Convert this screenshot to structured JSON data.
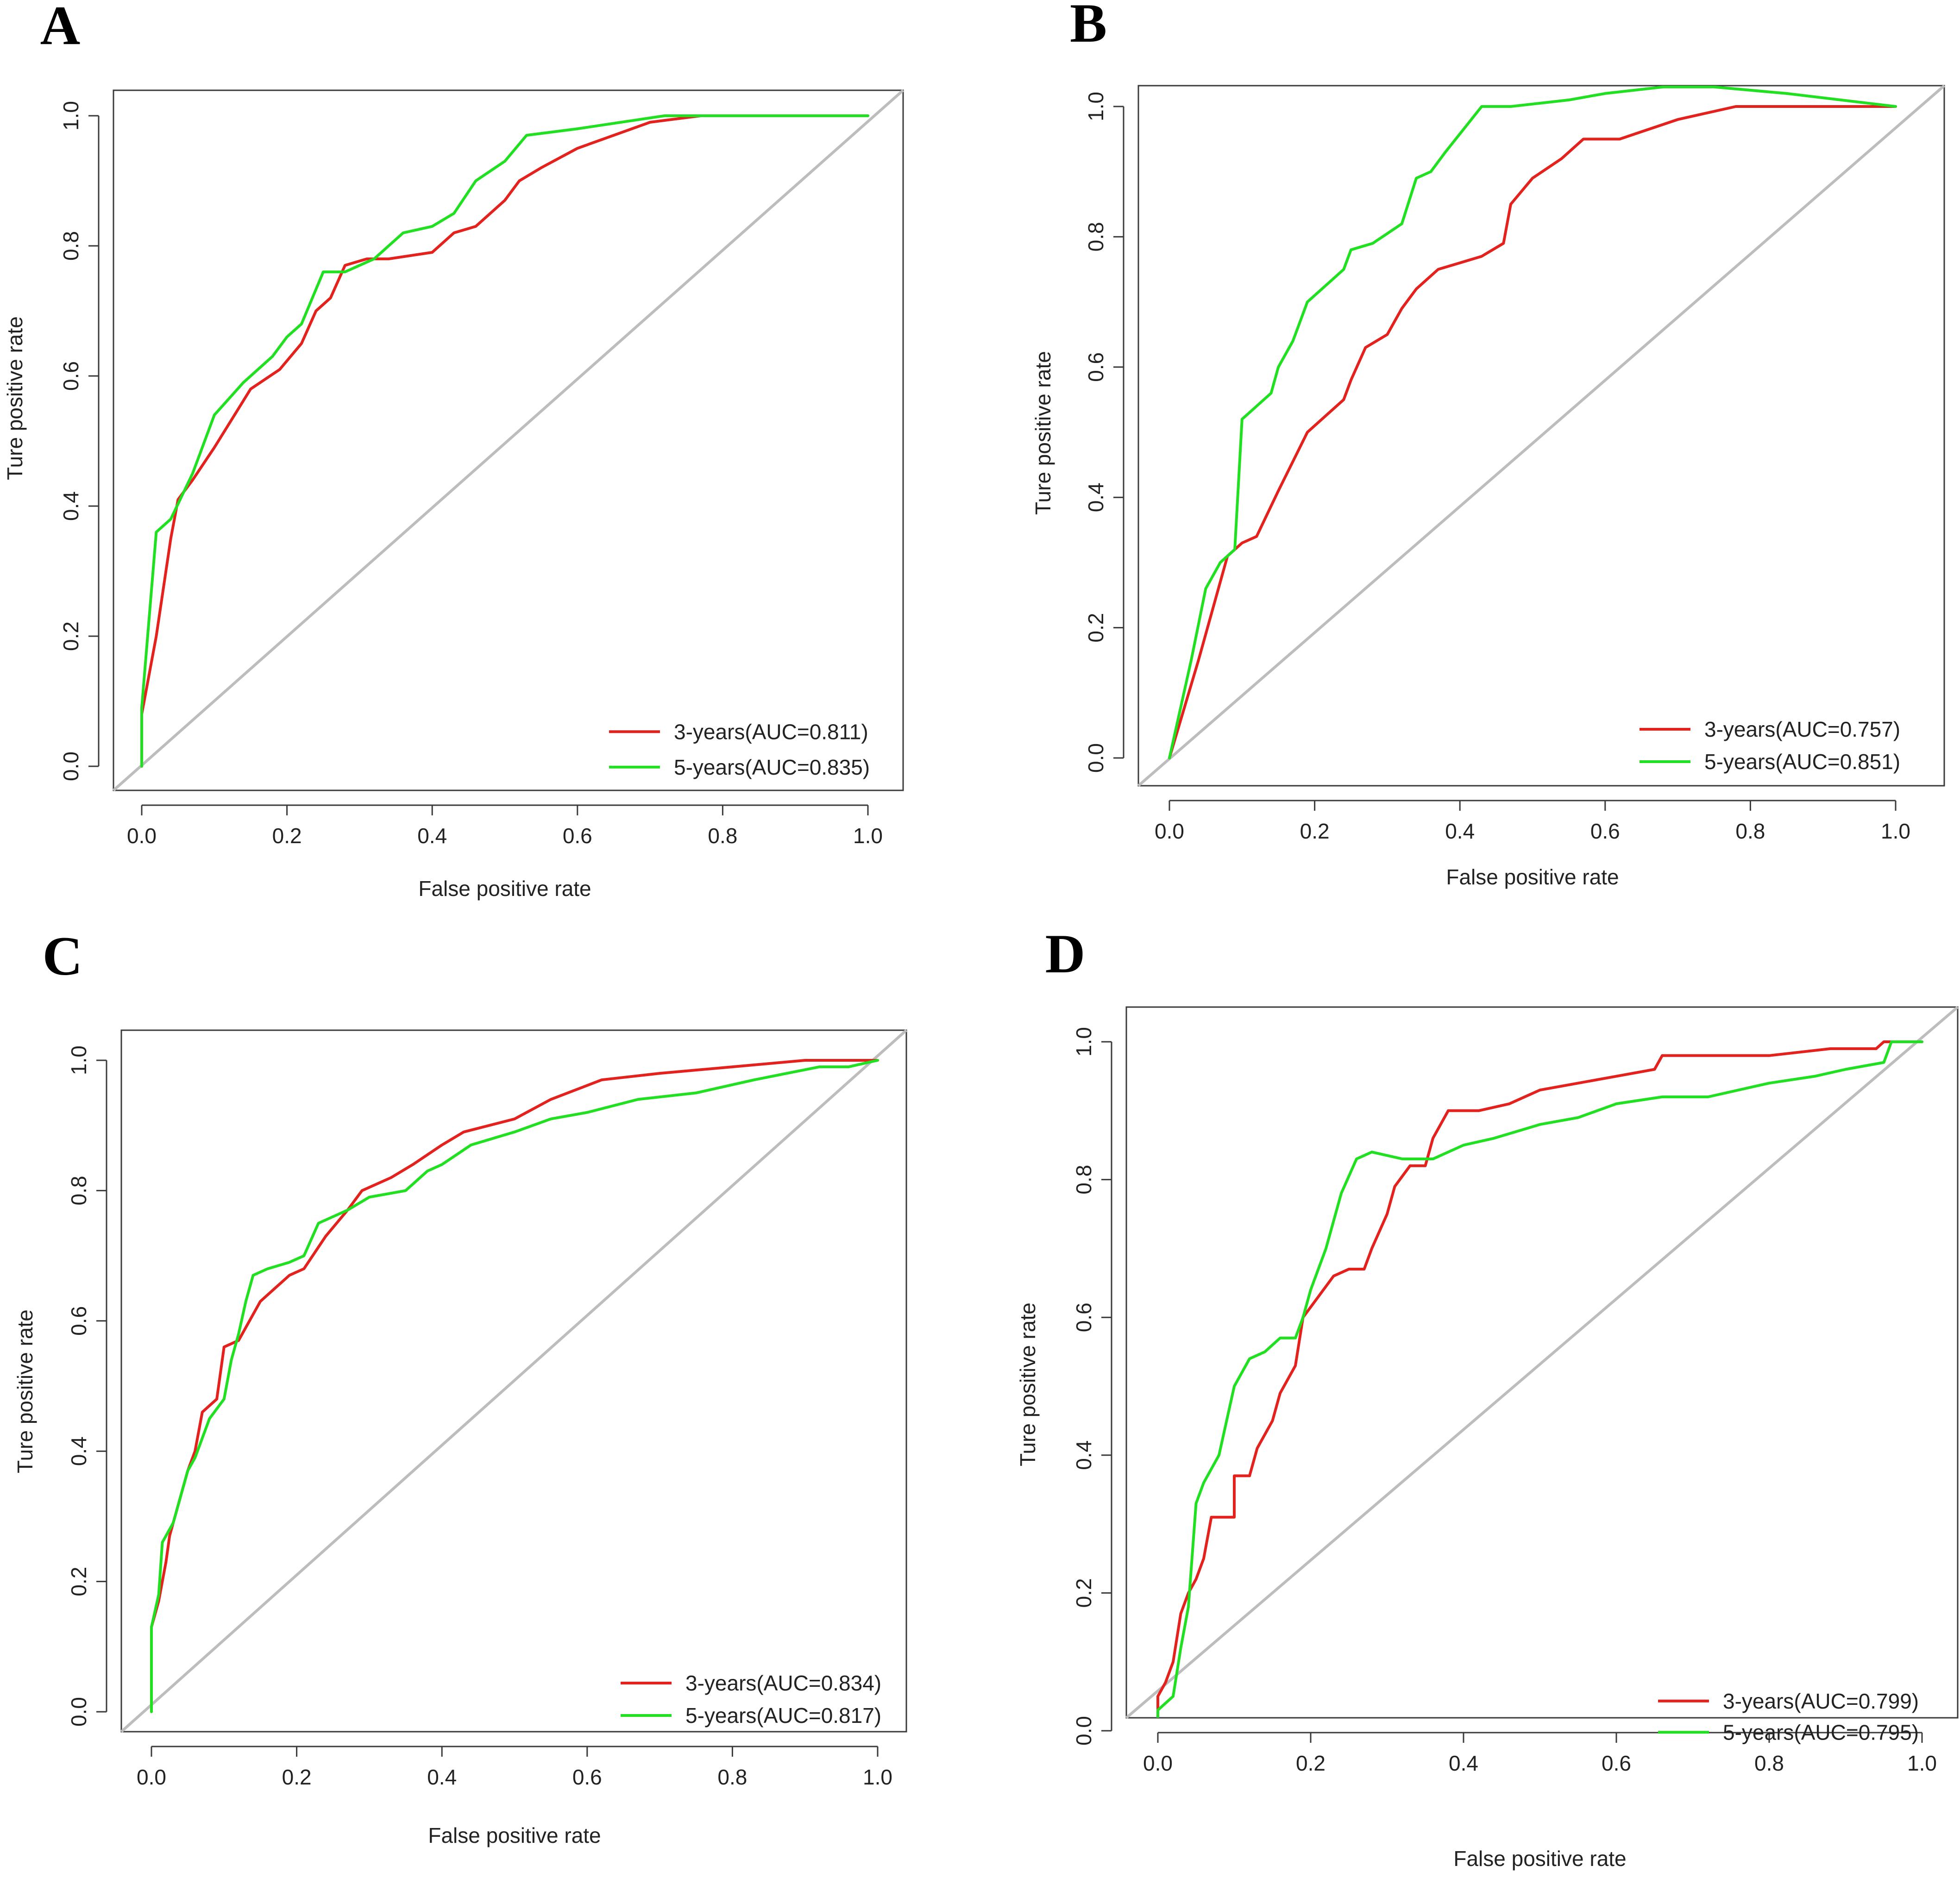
{
  "colors": {
    "three_year": "#e3211d",
    "five_year": "#21e021",
    "diagonal": "#bdbdbd"
  },
  "chart_data": [
    {
      "type": "line",
      "panel": "A",
      "xlabel": "False positive rate",
      "ylabel": "Ture positive rate",
      "xlim": [
        0,
        1
      ],
      "ylim": [
        0,
        1
      ],
      "xticks": [
        "0.0",
        "0.2",
        "0.4",
        "0.6",
        "0.8",
        "1.0"
      ],
      "yticks": [
        "0.0",
        "0.2",
        "0.4",
        "0.6",
        "0.8",
        "1.0"
      ],
      "legend_position": "bottom-right",
      "series": [
        {
          "name": "3-years(AUC=0.811)",
          "color_key": "three_year",
          "points": [
            [
              0,
              0
            ],
            [
              0,
              0.08
            ],
            [
              0.02,
              0.2
            ],
            [
              0.04,
              0.35
            ],
            [
              0.05,
              0.41
            ],
            [
              0.07,
              0.44
            ],
            [
              0.1,
              0.49
            ],
            [
              0.15,
              0.58
            ],
            [
              0.19,
              0.61
            ],
            [
              0.22,
              0.65
            ],
            [
              0.24,
              0.7
            ],
            [
              0.26,
              0.72
            ],
            [
              0.28,
              0.77
            ],
            [
              0.31,
              0.78
            ],
            [
              0.34,
              0.78
            ],
            [
              0.4,
              0.79
            ],
            [
              0.43,
              0.82
            ],
            [
              0.46,
              0.83
            ],
            [
              0.5,
              0.87
            ],
            [
              0.52,
              0.9
            ],
            [
              0.55,
              0.92
            ],
            [
              0.6,
              0.95
            ],
            [
              0.65,
              0.97
            ],
            [
              0.7,
              0.99
            ],
            [
              0.77,
              1.0
            ],
            [
              0.8,
              1.0
            ],
            [
              1,
              1
            ]
          ]
        },
        {
          "name": "5-years(AUC=0.835)",
          "color_key": "five_year",
          "points": [
            [
              0,
              0
            ],
            [
              0,
              0.09
            ],
            [
              0.02,
              0.36
            ],
            [
              0.04,
              0.38
            ],
            [
              0.07,
              0.45
            ],
            [
              0.1,
              0.54
            ],
            [
              0.14,
              0.59
            ],
            [
              0.18,
              0.63
            ],
            [
              0.2,
              0.66
            ],
            [
              0.22,
              0.68
            ],
            [
              0.25,
              0.76
            ],
            [
              0.28,
              0.76
            ],
            [
              0.32,
              0.78
            ],
            [
              0.36,
              0.82
            ],
            [
              0.4,
              0.83
            ],
            [
              0.43,
              0.85
            ],
            [
              0.46,
              0.9
            ],
            [
              0.5,
              0.93
            ],
            [
              0.53,
              0.97
            ],
            [
              0.6,
              0.98
            ],
            [
              0.72,
              1.0
            ],
            [
              0.76,
              1.0
            ],
            [
              1,
              1
            ]
          ]
        }
      ]
    },
    {
      "type": "line",
      "panel": "B",
      "xlabel": "False positive rate",
      "ylabel": "Ture positive rate",
      "xlim": [
        0,
        1
      ],
      "ylim": [
        0,
        1
      ],
      "xticks": [
        "0.0",
        "0.2",
        "0.4",
        "0.6",
        "0.8",
        "1.0"
      ],
      "yticks": [
        "0.0",
        "0.2",
        "0.4",
        "0.6",
        "0.8",
        "1.0"
      ],
      "legend_position": "bottom-right",
      "series": [
        {
          "name": "3-years(AUC=0.757)",
          "color_key": "three_year",
          "points": [
            [
              0,
              0
            ],
            [
              0.04,
              0.15
            ],
            [
              0.08,
              0.31
            ],
            [
              0.1,
              0.33
            ],
            [
              0.12,
              0.34
            ],
            [
              0.15,
              0.41
            ],
            [
              0.19,
              0.5
            ],
            [
              0.24,
              0.55
            ],
            [
              0.25,
              0.58
            ],
            [
              0.27,
              0.63
            ],
            [
              0.3,
              0.65
            ],
            [
              0.32,
              0.69
            ],
            [
              0.34,
              0.72
            ],
            [
              0.37,
              0.75
            ],
            [
              0.4,
              0.76
            ],
            [
              0.43,
              0.77
            ],
            [
              0.46,
              0.79
            ],
            [
              0.47,
              0.85
            ],
            [
              0.5,
              0.89
            ],
            [
              0.54,
              0.92
            ],
            [
              0.57,
              0.95
            ],
            [
              0.62,
              0.95
            ],
            [
              0.7,
              0.98
            ],
            [
              0.78,
              1.0
            ],
            [
              0.81,
              1.0
            ],
            [
              1,
              1
            ]
          ]
        },
        {
          "name": "5-years(AUC=0.851)",
          "color_key": "five_year",
          "points": [
            [
              0,
              0
            ],
            [
              0.03,
              0.15
            ],
            [
              0.05,
              0.26
            ],
            [
              0.07,
              0.3
            ],
            [
              0.09,
              0.32
            ],
            [
              0.1,
              0.52
            ],
            [
              0.12,
              0.54
            ],
            [
              0.14,
              0.56
            ],
            [
              0.15,
              0.6
            ],
            [
              0.17,
              0.64
            ],
            [
              0.19,
              0.7
            ],
            [
              0.21,
              0.72
            ],
            [
              0.24,
              0.75
            ],
            [
              0.25,
              0.78
            ],
            [
              0.28,
              0.79
            ],
            [
              0.32,
              0.82
            ],
            [
              0.34,
              0.89
            ],
            [
              0.36,
              0.9
            ],
            [
              0.38,
              0.93
            ],
            [
              0.43,
              1.0
            ],
            [
              0.47,
              1.0
            ],
            [
              0.55,
              1.01
            ],
            [
              0.6,
              1.02
            ],
            [
              0.68,
              1.03
            ],
            [
              0.75,
              1.03
            ],
            [
              0.85,
              1.02
            ],
            [
              1,
              1
            ]
          ]
        }
      ]
    },
    {
      "type": "line",
      "panel": "C",
      "xlabel": "False positive rate",
      "ylabel": "Ture positive rate",
      "xlim": [
        0,
        1
      ],
      "ylim": [
        0,
        1
      ],
      "xticks": [
        "0.0",
        "0.2",
        "0.4",
        "0.6",
        "0.8",
        "1.0"
      ],
      "yticks": [
        "0.0",
        "0.2",
        "0.4",
        "0.6",
        "0.8",
        "1.0"
      ],
      "legend_position": "bottom-right",
      "series": [
        {
          "name": "3-years(AUC=0.834)",
          "color_key": "three_year",
          "points": [
            [
              0,
              0.13
            ],
            [
              0.01,
              0.17
            ],
            [
              0.015,
              0.2
            ],
            [
              0.02,
              0.23
            ],
            [
              0.025,
              0.27
            ],
            [
              0.03,
              0.29
            ],
            [
              0.04,
              0.33
            ],
            [
              0.05,
              0.37
            ],
            [
              0.06,
              0.4
            ],
            [
              0.07,
              0.46
            ],
            [
              0.09,
              0.48
            ],
            [
              0.1,
              0.56
            ],
            [
              0.12,
              0.57
            ],
            [
              0.13,
              0.59
            ],
            [
              0.15,
              0.63
            ],
            [
              0.17,
              0.65
            ],
            [
              0.19,
              0.67
            ],
            [
              0.21,
              0.68
            ],
            [
              0.24,
              0.73
            ],
            [
              0.27,
              0.77
            ],
            [
              0.29,
              0.8
            ],
            [
              0.33,
              0.82
            ],
            [
              0.36,
              0.84
            ],
            [
              0.4,
              0.87
            ],
            [
              0.43,
              0.89
            ],
            [
              0.5,
              0.91
            ],
            [
              0.55,
              0.94
            ],
            [
              0.62,
              0.97
            ],
            [
              0.7,
              0.98
            ],
            [
              0.8,
              0.99
            ],
            [
              0.9,
              1.0
            ],
            [
              1,
              1
            ]
          ]
        },
        {
          "name": "5-years(AUC=0.817)",
          "color_key": "five_year",
          "points": [
            [
              0,
              0
            ],
            [
              0,
              0.13
            ],
            [
              0.01,
              0.18
            ],
            [
              0.015,
              0.26
            ],
            [
              0.03,
              0.29
            ],
            [
              0.04,
              0.33
            ],
            [
              0.05,
              0.37
            ],
            [
              0.06,
              0.39
            ],
            [
              0.08,
              0.45
            ],
            [
              0.1,
              0.48
            ],
            [
              0.11,
              0.54
            ],
            [
              0.12,
              0.58
            ],
            [
              0.13,
              0.63
            ],
            [
              0.14,
              0.67
            ],
            [
              0.16,
              0.68
            ],
            [
              0.19,
              0.69
            ],
            [
              0.21,
              0.7
            ],
            [
              0.23,
              0.75
            ],
            [
              0.25,
              0.76
            ],
            [
              0.27,
              0.77
            ],
            [
              0.3,
              0.79
            ],
            [
              0.35,
              0.8
            ],
            [
              0.38,
              0.83
            ],
            [
              0.4,
              0.84
            ],
            [
              0.44,
              0.87
            ],
            [
              0.5,
              0.89
            ],
            [
              0.55,
              0.91
            ],
            [
              0.6,
              0.92
            ],
            [
              0.67,
              0.94
            ],
            [
              0.75,
              0.95
            ],
            [
              0.83,
              0.97
            ],
            [
              0.92,
              0.99
            ],
            [
              0.96,
              0.99
            ],
            [
              1,
              1
            ]
          ]
        }
      ]
    },
    {
      "type": "line",
      "panel": "D",
      "xlabel": "False positive rate",
      "ylabel": "Ture positive rate",
      "xlim": [
        0,
        1
      ],
      "ylim": [
        0,
        1
      ],
      "xticks": [
        "0.0",
        "0.2",
        "0.4",
        "0.6",
        "0.8",
        "1.0"
      ],
      "yticks": [
        "0.0",
        "0.2",
        "0.4",
        "0.6",
        "0.8",
        "1.0"
      ],
      "legend_position": "bottom-right",
      "series": [
        {
          "name": "3-years(AUC=0.799)",
          "color_key": "three_year",
          "points": [
            [
              0,
              0
            ],
            [
              0,
              0.05
            ],
            [
              0.01,
              0.07
            ],
            [
              0.02,
              0.1
            ],
            [
              0.03,
              0.17
            ],
            [
              0.04,
              0.2
            ],
            [
              0.05,
              0.22
            ],
            [
              0.06,
              0.25
            ],
            [
              0.07,
              0.31
            ],
            [
              0.1,
              0.31
            ],
            [
              0.1,
              0.37
            ],
            [
              0.12,
              0.37
            ],
            [
              0.13,
              0.41
            ],
            [
              0.15,
              0.45
            ],
            [
              0.16,
              0.49
            ],
            [
              0.18,
              0.53
            ],
            [
              0.19,
              0.6
            ],
            [
              0.21,
              0.63
            ],
            [
              0.23,
              0.66
            ],
            [
              0.25,
              0.67
            ],
            [
              0.27,
              0.67
            ],
            [
              0.28,
              0.7
            ],
            [
              0.3,
              0.75
            ],
            [
              0.31,
              0.79
            ],
            [
              0.33,
              0.82
            ],
            [
              0.35,
              0.82
            ],
            [
              0.36,
              0.86
            ],
            [
              0.38,
              0.9
            ],
            [
              0.42,
              0.9
            ],
            [
              0.46,
              0.91
            ],
            [
              0.5,
              0.93
            ],
            [
              0.55,
              0.94
            ],
            [
              0.6,
              0.95
            ],
            [
              0.65,
              0.96
            ],
            [
              0.66,
              0.98
            ],
            [
              0.73,
              0.98
            ],
            [
              0.8,
              0.98
            ],
            [
              0.88,
              0.99
            ],
            [
              0.94,
              0.99
            ],
            [
              0.95,
              1.0
            ],
            [
              0.98,
              1.0
            ],
            [
              1,
              1
            ]
          ]
        },
        {
          "name": "5-years(AUC=0.795)",
          "color_key": "five_year",
          "points": [
            [
              0,
              0
            ],
            [
              0,
              0.03
            ],
            [
              0.02,
              0.05
            ],
            [
              0.03,
              0.12
            ],
            [
              0.04,
              0.18
            ],
            [
              0.05,
              0.33
            ],
            [
              0.06,
              0.36
            ],
            [
              0.08,
              0.4
            ],
            [
              0.1,
              0.5
            ],
            [
              0.12,
              0.54
            ],
            [
              0.14,
              0.55
            ],
            [
              0.16,
              0.57
            ],
            [
              0.18,
              0.57
            ],
            [
              0.19,
              0.6
            ],
            [
              0.2,
              0.64
            ],
            [
              0.22,
              0.7
            ],
            [
              0.24,
              0.78
            ],
            [
              0.26,
              0.83
            ],
            [
              0.28,
              0.84
            ],
            [
              0.32,
              0.83
            ],
            [
              0.36,
              0.83
            ],
            [
              0.4,
              0.85
            ],
            [
              0.44,
              0.86
            ],
            [
              0.5,
              0.88
            ],
            [
              0.55,
              0.89
            ],
            [
              0.6,
              0.91
            ],
            [
              0.66,
              0.92
            ],
            [
              0.72,
              0.92
            ],
            [
              0.8,
              0.94
            ],
            [
              0.86,
              0.95
            ],
            [
              0.9,
              0.96
            ],
            [
              0.95,
              0.97
            ],
            [
              0.96,
              1.0
            ],
            [
              0.98,
              1.0
            ],
            [
              1,
              1
            ]
          ]
        }
      ]
    }
  ]
}
